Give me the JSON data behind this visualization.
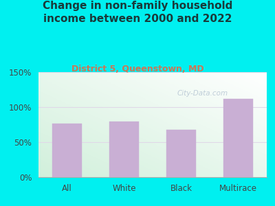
{
  "title": "Change in non-family household\nincome between 2000 and 2022",
  "subtitle": "District 5, Queenstown, MD",
  "categories": [
    "All",
    "White",
    "Black",
    "Multirace"
  ],
  "values": [
    76,
    79,
    68,
    112
  ],
  "bar_color": "#c9afd4",
  "bar_edge_color": "#c9afd4",
  "ylim": [
    0,
    150
  ],
  "yticks": [
    0,
    50,
    100,
    150
  ],
  "ytick_labels": [
    "0%",
    "50%",
    "100%",
    "150%"
  ],
  "background_outer": "#00f0f0",
  "background_plot_top": "#f0f8f0",
  "background_plot_bottom": "#d0eedd",
  "title_color": "#1a3a3a",
  "subtitle_color": "#cc7755",
  "title_fontsize": 11.0,
  "subtitle_fontsize": 9.0,
  "tick_label_fontsize": 8.5,
  "watermark": "City-Data.com",
  "grid_color": "#e0d8e8",
  "watermark_color": "#aabbcc"
}
